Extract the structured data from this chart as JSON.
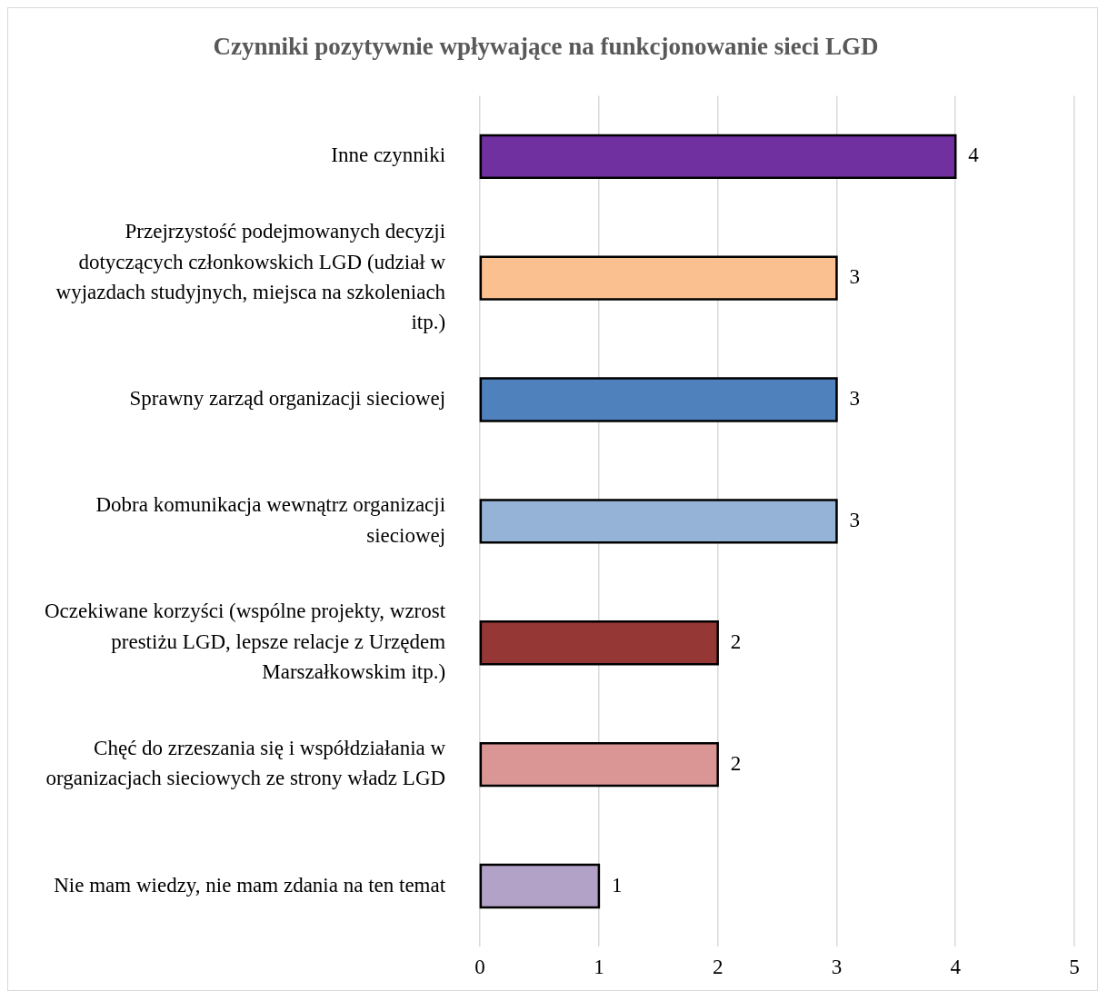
{
  "chart_data": {
    "type": "bar",
    "orientation": "horizontal",
    "title": "Czynniki pozytywnie wpływające na funkcjonowanie sieci LGD",
    "categories": [
      "Inne czynniki",
      "Przejrzystość podejmowanych decyzji dotyczących członkowskich LGD (udział w wyjazdach studyjnych, miejsca na szkoleniach itp.)",
      "Sprawny zarząd organizacji sieciowej",
      "Dobra komunikacja wewnątrz organizacji sieciowej",
      "Oczekiwane korzyści (wspólne projekty, wzrost prestiżu LGD, lepsze relacje z Urzędem Marszałkowskim itp.)",
      "Chęć do zrzeszania się i współdziałania w organizacjach sieciowych ze strony władz LGD",
      "Nie mam wiedzy, nie mam zdania na ten temat"
    ],
    "values": [
      4,
      3,
      3,
      3,
      2,
      2,
      1
    ],
    "colors": [
      "#7030a0",
      "#fac090",
      "#4f81bd",
      "#95b3d7",
      "#953735",
      "#d99694",
      "#b3a2c7"
    ],
    "xlim": [
      0,
      5
    ],
    "xticks": [
      0,
      1,
      2,
      3,
      4,
      5
    ],
    "grid": "x",
    "data_labels": true
  }
}
